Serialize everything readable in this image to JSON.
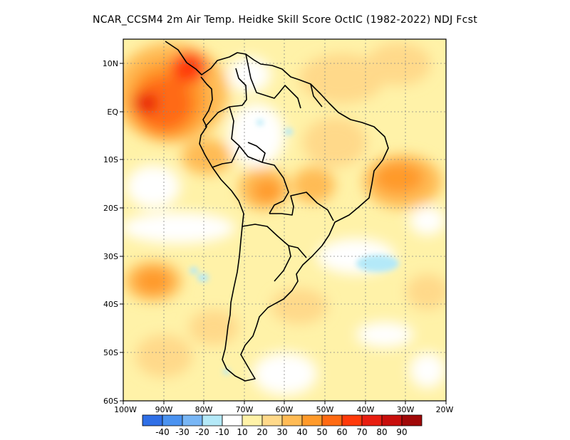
{
  "title": "NCAR_CCSM4  2m Air Temp. Heidke Skill Score OctIC (1982-2022) NDJ Fcst",
  "map": {
    "lat_labels": [
      "10N",
      "EQ",
      "10S",
      "20S",
      "30S",
      "40S",
      "50S",
      "60S"
    ],
    "lon_labels": [
      "100W",
      "90W",
      "80W",
      "70W",
      "60W",
      "50W",
      "40W",
      "30W",
      "20W"
    ],
    "lon_range": [
      -100,
      -20
    ],
    "lat_range": [
      -60,
      5
    ],
    "gridlines": "dotted",
    "region": "South America"
  },
  "colorbar": {
    "labels": [
      "-40",
      "-30",
      "-20",
      "-10",
      "10",
      "20",
      "30",
      "40",
      "50",
      "60",
      "70",
      "80",
      "90"
    ],
    "colors": [
      "#2f6fe6",
      "#4a92f0",
      "#78b6f5",
      "#b4e9f8",
      "#ffffff",
      "#fff2a8",
      "#ffd98a",
      "#ffbb55",
      "#ff9a2a",
      "#ff6a12",
      "#ff3a0a",
      "#e81e10",
      "#c80e0c",
      "#a00808"
    ]
  }
}
